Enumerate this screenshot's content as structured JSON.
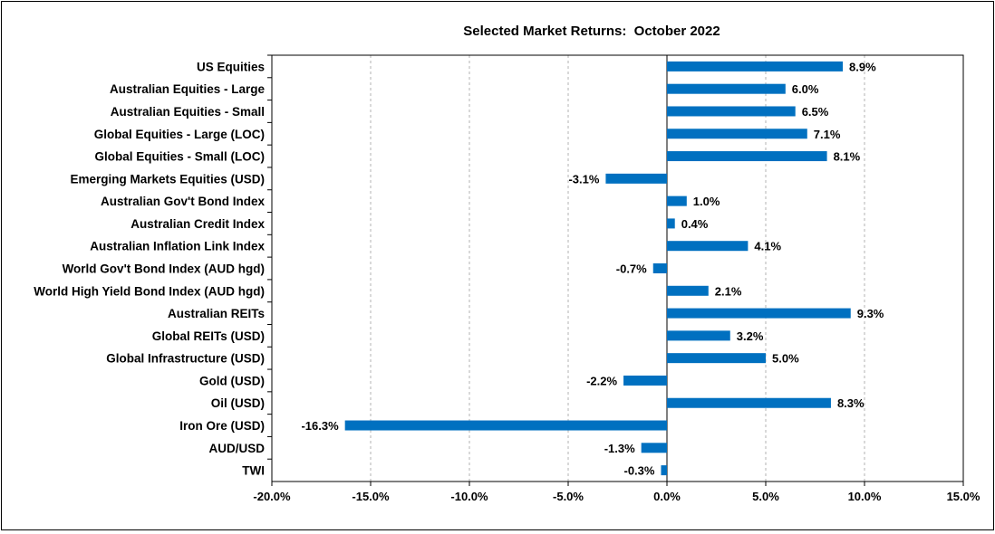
{
  "chart_data": {
    "type": "bar",
    "orientation": "horizontal",
    "title": "Selected Market Returns:  October 2022",
    "categories": [
      "US Equities",
      "Australian Equities - Large",
      "Australian Equities - Small",
      "Global Equities - Large (LOC)",
      "Global Equities - Small (LOC)",
      "Emerging Markets Equities (USD)",
      "Australian Gov't Bond Index",
      "Australian Credit Index",
      "Australian Inflation Link Index",
      "World Gov't Bond Index (AUD hgd)",
      "World High Yield Bond Index (AUD hgd)",
      "Australian REITs",
      "Global REITs (USD)",
      "Global Infrastructure (USD)",
      "Gold (USD)",
      "Oil (USD)",
      "Iron Ore (USD)",
      "AUD/USD",
      "TWI"
    ],
    "values": [
      8.9,
      6.0,
      6.5,
      7.1,
      8.1,
      -3.1,
      1.0,
      0.4,
      4.1,
      -0.7,
      2.1,
      9.3,
      3.2,
      5.0,
      -2.2,
      8.3,
      -16.3,
      -1.3,
      -0.3
    ],
    "value_labels": [
      "8.9%",
      "6.0%",
      "6.5%",
      "7.1%",
      "8.1%",
      "-3.1%",
      "1.0%",
      "0.4%",
      "4.1%",
      "-0.7%",
      "2.1%",
      "9.3%",
      "3.2%",
      "5.0%",
      "-2.2%",
      "8.3%",
      "-16.3%",
      "-1.3%",
      "-0.3%"
    ],
    "xlim": [
      -20,
      15
    ],
    "xticks": [
      -20,
      -15,
      -10,
      -5,
      0,
      5,
      10,
      15
    ],
    "xtick_labels": [
      "-20.0%",
      "-15.0%",
      "-10.0%",
      "-5.0%",
      "0.0%",
      "5.0%",
      "10.0%",
      "15.0%"
    ],
    "xlabel": "",
    "ylabel": "",
    "grid": "vertical dashed",
    "legend": "none",
    "bar_color": "#0070C0",
    "grid_color": "#b3b3b3"
  }
}
